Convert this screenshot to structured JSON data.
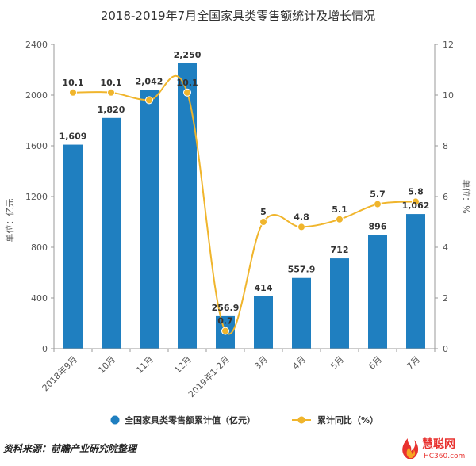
{
  "chart_data": {
    "type": "bar+line",
    "title": "2018-2019年7月全国家具类零售额统计及增长情况",
    "categories": [
      "2018年9月",
      "10月",
      "11月",
      "12月",
      "2019年1-2月",
      "3月",
      "4月",
      "5月",
      "6月",
      "7月"
    ],
    "series": [
      {
        "name": "全国家具类零售额累计值（亿元）",
        "type": "bar",
        "axis": "left",
        "color": "#1f7fc0",
        "values": [
          1609,
          1820,
          2042,
          2250,
          256.9,
          414,
          557.9,
          712,
          896,
          1062
        ],
        "labels": [
          "1,609",
          "1,820",
          "2,042",
          "2,250",
          "256.9",
          "414",
          "557.9",
          "712",
          "896",
          "1,062"
        ]
      },
      {
        "name": "累计同比（%）",
        "type": "line",
        "axis": "right",
        "color": "#f0b52c",
        "values": [
          10.1,
          10.1,
          9.8,
          10.1,
          0.7,
          5,
          4.8,
          5.1,
          5.7,
          5.8
        ],
        "labels": [
          "10.1",
          "10.1",
          "",
          "10.1",
          "0.7",
          "5",
          "4.8",
          "5.1",
          "5.7",
          "5.8"
        ]
      }
    ],
    "y_left": {
      "label": "单位：亿元",
      "min": 0,
      "max": 2400,
      "ticks": [
        "0",
        "400",
        "800",
        "1200",
        "1600",
        "2000",
        "2400"
      ]
    },
    "y_right": {
      "label": "单位：%",
      "min": 0,
      "max": 12,
      "ticks": [
        "0",
        "2",
        "4",
        "6",
        "8",
        "10",
        "12"
      ]
    },
    "grid": false,
    "legend_position": "bottom"
  },
  "footer": {
    "source": "资料来源：前瞻产业研究院整理",
    "logo_text": "慧聪网",
    "logo_sub": "HC360.com"
  }
}
